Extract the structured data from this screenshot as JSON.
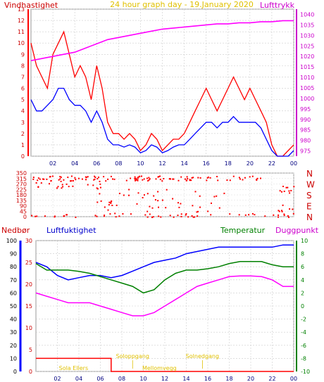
{
  "chart_data": [
    {
      "type": "line",
      "title": "24 hour graph day - 19.January 2020",
      "left_label": "Vindhastighet",
      "right_label": "Lufttrykk",
      "x_ticks": [
        "02",
        "04",
        "06",
        "08",
        "10",
        "12",
        "14",
        "16",
        "18",
        "20",
        "22",
        "00"
      ],
      "x_range_hours": [
        0,
        24
      ],
      "y_left_range": [
        0,
        13
      ],
      "y_left_ticks": [
        "0",
        "1",
        "2",
        "3",
        "4",
        "5",
        "6",
        "7",
        "8",
        "9",
        "10",
        "11",
        "12",
        "13"
      ],
      "y_right_range": [
        972.5,
        1042.5
      ],
      "y_right_ticks": [
        "975",
        "980",
        "985",
        "990",
        "995",
        "1000",
        "1005",
        "1010",
        "1015",
        "1020",
        "1025",
        "1030",
        "1035",
        "1040"
      ],
      "grid": true,
      "series": [
        {
          "name": "Vindhastighet",
          "color": "#ff0000",
          "axis": "left",
          "x": [
            0,
            0.5,
            1,
            1.5,
            2,
            2.5,
            3,
            3.5,
            4,
            4.5,
            5,
            5.5,
            6,
            6.5,
            7,
            7.5,
            8,
            8.5,
            9,
            9.5,
            10,
            10.5,
            11,
            11.5,
            12,
            12.5,
            13,
            13.5,
            14,
            14.5,
            15,
            15.5,
            16,
            16.5,
            17,
            17.5,
            18,
            18.5,
            19,
            19.5,
            20,
            20.5,
            21,
            21.5,
            22,
            22.5,
            23,
            23.5,
            24
          ],
          "y": [
            10,
            8,
            7,
            6,
            9,
            10,
            11,
            9,
            7,
            8,
            7,
            5,
            8,
            6,
            3,
            2,
            2,
            1.5,
            2,
            1.5,
            0.5,
            1,
            2,
            1.5,
            0.5,
            1,
            1.5,
            1.5,
            2,
            3,
            4,
            5,
            6,
            5,
            4,
            5,
            6,
            7,
            6,
            5,
            6,
            5,
            4,
            3,
            1,
            0,
            0,
            0.5,
            1
          ]
        },
        {
          "name": "",
          "color": "#0000ff",
          "axis": "left",
          "x": [
            0,
            0.5,
            1,
            1.5,
            2,
            2.5,
            3,
            3.5,
            4,
            4.5,
            5,
            5.5,
            6,
            6.5,
            7,
            7.5,
            8,
            8.5,
            9,
            9.5,
            10,
            10.5,
            11,
            11.5,
            12,
            12.5,
            13,
            13.5,
            14,
            14.5,
            15,
            15.5,
            16,
            16.5,
            17,
            17.5,
            18,
            18.5,
            19,
            19.5,
            20,
            20.5,
            21,
            21.5,
            22,
            22.5,
            23,
            23.5,
            24
          ],
          "y": [
            5,
            4,
            4,
            4.5,
            5,
            6,
            6,
            5,
            4.5,
            4.5,
            4,
            3,
            4,
            3,
            1.5,
            1,
            1,
            0.8,
            1,
            0.8,
            0.3,
            0.5,
            1,
            0.8,
            0.3,
            0.5,
            0.8,
            1,
            1,
            1.5,
            2,
            2.5,
            3,
            3,
            2.5,
            3,
            3,
            3.5,
            3,
            3,
            3,
            3,
            2.5,
            1.5,
            0.5,
            0,
            0,
            0,
            0.5
          ]
        },
        {
          "name": "Lufttrykk",
          "color": "#ff00ff",
          "axis": "right",
          "x": [
            0,
            1,
            2,
            3,
            4,
            5,
            6,
            7,
            8,
            9,
            10,
            11,
            12,
            13,
            14,
            15,
            16,
            17,
            18,
            19,
            20,
            21,
            22,
            23,
            24
          ],
          "y": [
            1018,
            1019,
            1020,
            1021,
            1022,
            1024,
            1026,
            1028,
            1029,
            1030,
            1031,
            1032,
            1033,
            1033.5,
            1034,
            1034.5,
            1035,
            1035.5,
            1035.5,
            1036,
            1036,
            1036.5,
            1036.5,
            1037,
            1037
          ]
        }
      ]
    },
    {
      "type": "scatter",
      "y_range_degrees": [
        0,
        360
      ],
      "y_ticks": [
        "0",
        "45",
        "90",
        "135",
        "180",
        "225",
        "270",
        "315",
        "360"
      ],
      "y_ticks_display": [
        "0",
        "45",
        "90",
        "135",
        "180",
        "225",
        "270",
        "315",
        "350"
      ],
      "direction_labels": [
        "N",
        "W",
        "S",
        "E",
        "N"
      ],
      "color": "#ff0000",
      "clusters": [
        {
          "x": [
            0,
            21.5
          ],
          "y": [
            300,
            340
          ],
          "n": 110
        },
        {
          "x": [
            0,
            7
          ],
          "y": [
            240,
            300
          ],
          "n": 20
        },
        {
          "x": [
            0,
            24
          ],
          "y": [
            0,
            30
          ],
          "n": 50
        },
        {
          "x": [
            6,
            18
          ],
          "y": [
            30,
            240
          ],
          "n": 50
        },
        {
          "x": [
            22.5,
            24
          ],
          "y": [
            0,
            100
          ],
          "n": 12
        },
        {
          "x": [
            22.5,
            24
          ],
          "y": [
            200,
            260
          ],
          "n": 10
        }
      ]
    },
    {
      "type": "line",
      "left_labels": [
        "Nedbør",
        "Luftfuktighet"
      ],
      "right_labels": [
        "Temperatur",
        "Duggpunkt"
      ],
      "x_ticks": [
        "02",
        "04",
        "06",
        "08",
        "10",
        "12",
        "14",
        "16",
        "18",
        "20",
        "22",
        "00"
      ],
      "y_precip_range": [
        0,
        100
      ],
      "y_precip_ticks": [
        "0",
        "10",
        "20",
        "30",
        "40",
        "50",
        "60",
        "70",
        "80",
        "90",
        "100"
      ],
      "y_humidity_range": [
        0,
        30
      ],
      "y_humidity_ticks": [
        "0",
        "5",
        "10",
        "15",
        "20",
        "25",
        "30"
      ],
      "y_temp_range": [
        -10,
        10
      ],
      "y_temp_ticks": [
        "-10",
        "-8",
        "-6",
        "-4",
        "-2",
        "0",
        "2",
        "4",
        "6",
        "8",
        "10"
      ],
      "sun_labels": [
        {
          "text": "Soloppgang",
          "x": 9.0
        },
        {
          "text": "Solnedgang",
          "x": 15.5
        }
      ],
      "sun_bars": [
        {
          "text": "Sola Ellers",
          "x": 3.5
        },
        {
          "text": "Mellomvegg",
          "x": 11.5
        }
      ],
      "series": [
        {
          "name": "Nedbør",
          "color": "#ff0000",
          "axis": "precip",
          "x": [
            0,
            7,
            7,
            24
          ],
          "y": [
            10,
            10,
            0,
            0
          ]
        },
        {
          "name": "Luftfuktighet",
          "color": "#0000ff",
          "axis": "humidity",
          "x": [
            0,
            1,
            2,
            3,
            4,
            5,
            6,
            7,
            8,
            9,
            10,
            11,
            12,
            13,
            14,
            15,
            16,
            17,
            18,
            19,
            20,
            21,
            22,
            23,
            24
          ],
          "y": [
            25,
            24,
            22,
            21,
            21.5,
            22,
            22,
            21.5,
            22,
            23,
            24,
            25,
            25.5,
            26,
            27,
            27.5,
            28,
            28.5,
            28.5,
            28.5,
            28.5,
            28.5,
            28.5,
            29,
            29
          ]
        },
        {
          "name": "Temperatur",
          "color": "#008000",
          "axis": "temp",
          "x": [
            0,
            1,
            2,
            3,
            4,
            5,
            6,
            7,
            8,
            9,
            10,
            11,
            12,
            13,
            14,
            15,
            16,
            17,
            18,
            19,
            20,
            21,
            22,
            23,
            24
          ],
          "y": [
            6.5,
            5.5,
            5.5,
            5.5,
            5.3,
            5,
            4.5,
            4,
            3.5,
            3,
            2,
            2.5,
            4,
            5,
            5.5,
            5.5,
            5.7,
            6,
            6.5,
            6.8,
            6.8,
            6.8,
            6.3,
            6,
            6
          ]
        },
        {
          "name": "Duggpunkt",
          "color": "#ff00ff",
          "axis": "temp",
          "x": [
            0,
            1,
            2,
            3,
            4,
            5,
            6,
            7,
            8,
            9,
            10,
            11,
            12,
            13,
            14,
            15,
            16,
            17,
            18,
            19,
            20,
            21,
            22,
            23,
            24
          ],
          "y": [
            2,
            1.5,
            1,
            0.5,
            0.5,
            0.5,
            0,
            -0.5,
            -1,
            -1.5,
            -1.5,
            -1,
            0,
            1,
            2,
            3,
            3.5,
            4,
            4.5,
            4.6,
            4.6,
            4.5,
            4,
            3,
            3
          ]
        }
      ]
    }
  ]
}
